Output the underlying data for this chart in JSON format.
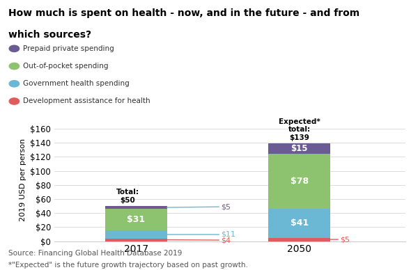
{
  "title_line1": "How much is spent on health - now, and in the future - and from",
  "title_line2": "which sources?",
  "legend_items": [
    {
      "label": "Prepaid private spending",
      "color": "#6b5b95"
    },
    {
      "label": "Out-of-pocket spending",
      "color": "#8dc26f"
    },
    {
      "label": "Government health spending",
      "color": "#6bb8d4"
    },
    {
      "label": "Development assistance for health",
      "color": "#e05c5c"
    }
  ],
  "years": [
    "2017",
    "2050"
  ],
  "bars": {
    "2017": {
      "development": 4,
      "government": 11,
      "outofpocket": 31,
      "prepaid": 4,
      "total": 50
    },
    "2050": {
      "development": 5,
      "government": 41,
      "outofpocket": 78,
      "prepaid": 15,
      "total": 139
    }
  },
  "ylabel": "2019 USD per person",
  "ylim": [
    0,
    175
  ],
  "yticks": [
    0,
    20,
    40,
    60,
    80,
    100,
    120,
    140,
    160
  ],
  "ytick_labels": [
    "$0",
    "$20",
    "$40",
    "$60",
    "$80",
    "$100",
    "$120",
    "$140",
    "$160"
  ],
  "source_text": "Source: Financing Global Health Database 2019",
  "footnote_text": "*\"Expected\" is the future growth trajectory based on past growth.",
  "colors": {
    "development": "#e05c5c",
    "government": "#6bb8d4",
    "outofpocket": "#8dc26f",
    "prepaid": "#6b5b95",
    "annotation_blue": "#6bb8d4",
    "annotation_red": "#e05c5c",
    "annotation_purple": "#6b5b95",
    "grid": "#dddddd",
    "spine": "#cccccc"
  },
  "bar_width": 0.38,
  "background_color": "#ffffff"
}
